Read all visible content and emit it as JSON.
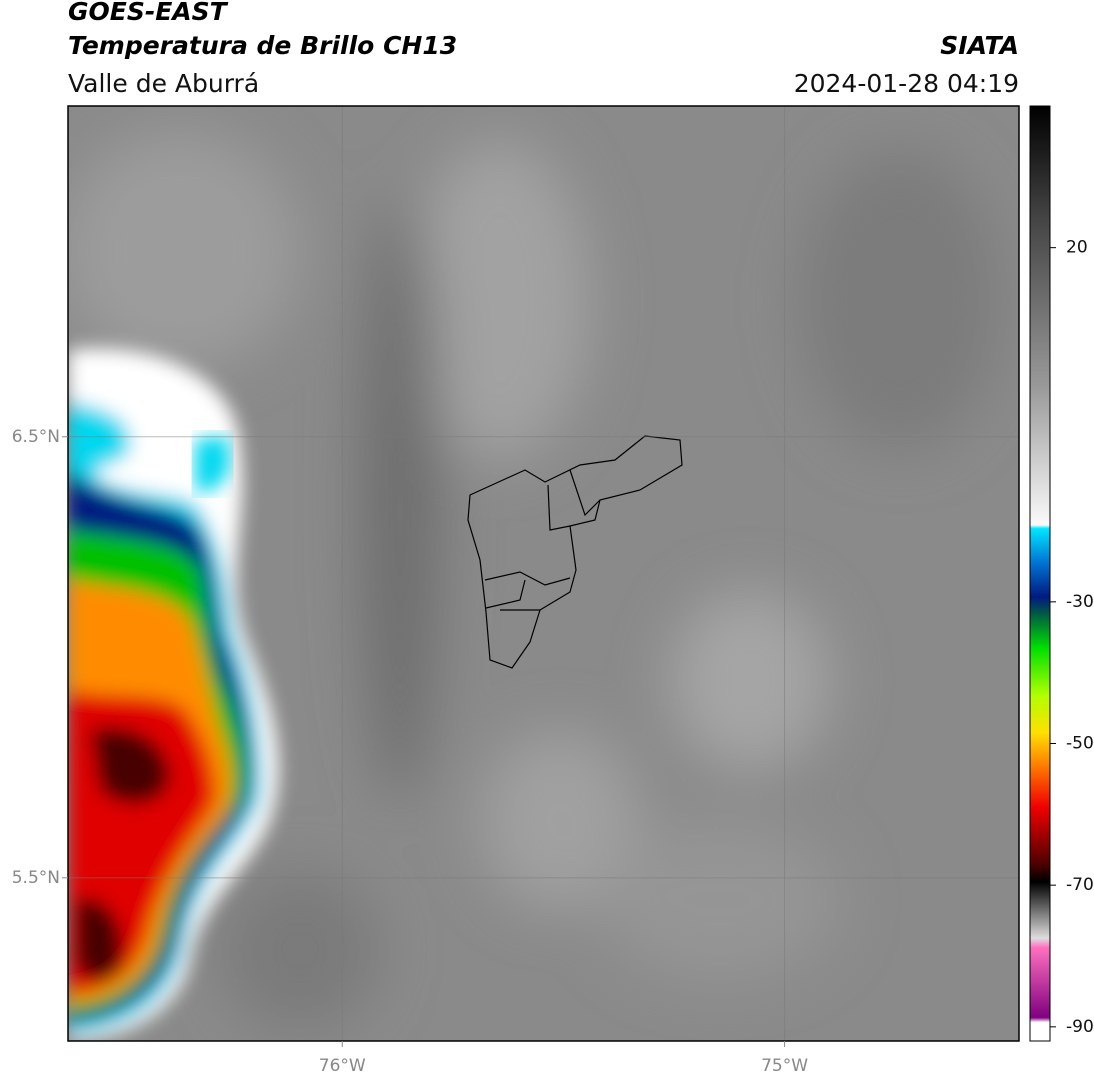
{
  "header": {
    "title": "GOES-EAST",
    "subtitle": "Temperatura de Brillo CH13",
    "source": "SIATA",
    "region": "Valle de Aburrá",
    "datetime": "2024-01-28 04:19"
  },
  "map": {
    "xlim": [
      -76.62,
      -74.47
    ],
    "ylim": [
      5.13,
      7.25
    ],
    "xticks": [
      {
        "value": -76,
        "label": "76°W"
      },
      {
        "value": -75,
        "label": "75°W"
      }
    ],
    "yticks": [
      {
        "value": 6.5,
        "label": "6.5°N"
      },
      {
        "value": 5.5,
        "label": "5.5°N"
      }
    ]
  },
  "colorbar": {
    "lim": [
      -92,
      40
    ],
    "ticks": [
      20,
      -30,
      -50,
      -70,
      -90
    ]
  }
}
